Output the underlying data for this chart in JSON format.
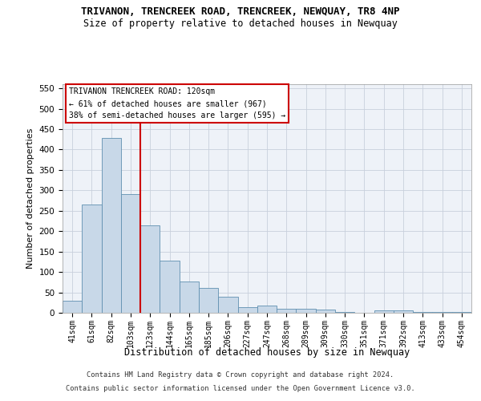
{
  "title": "TRIVANON, TRENCREEK ROAD, TRENCREEK, NEWQUAY, TR8 4NP",
  "subtitle": "Size of property relative to detached houses in Newquay",
  "xlabel": "Distribution of detached houses by size in Newquay",
  "ylabel": "Number of detached properties",
  "bar_color": "#c8d8e8",
  "bar_edge_color": "#6090b0",
  "categories": [
    "41sqm",
    "61sqm",
    "82sqm",
    "103sqm",
    "123sqm",
    "144sqm",
    "165sqm",
    "185sqm",
    "206sqm",
    "227sqm",
    "247sqm",
    "268sqm",
    "289sqm",
    "309sqm",
    "330sqm",
    "351sqm",
    "371sqm",
    "392sqm",
    "413sqm",
    "433sqm",
    "454sqm"
  ],
  "values": [
    30,
    265,
    428,
    290,
    215,
    128,
    77,
    61,
    40,
    14,
    17,
    10,
    9,
    8,
    2,
    0,
    5,
    6,
    1,
    1,
    2
  ],
  "ylim": [
    0,
    560
  ],
  "yticks": [
    0,
    50,
    100,
    150,
    200,
    250,
    300,
    350,
    400,
    450,
    500,
    550
  ],
  "vline_pos": 3.5,
  "annotation_line1": "TRIVANON TRENCREEK ROAD: 120sqm",
  "annotation_line2": "← 61% of detached houses are smaller (967)",
  "annotation_line3": "38% of semi-detached houses are larger (595) →",
  "footer1": "Contains HM Land Registry data © Crown copyright and database right 2024.",
  "footer2": "Contains public sector information licensed under the Open Government Licence v3.0.",
  "background_color": "#eef2f8",
  "grid_color": "#c8d0dc",
  "vline_color": "#cc0000",
  "annotation_box_edge": "#cc0000",
  "fig_width": 6.0,
  "fig_height": 5.0,
  "dpi": 100
}
